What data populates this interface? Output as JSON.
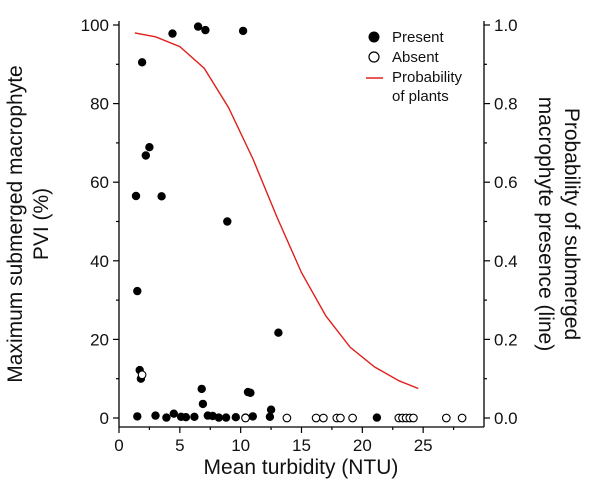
{
  "chart_data": {
    "type": "scatter",
    "xlabel": "Mean turbidity (NTU)",
    "ylabel_left": [
      "Maximum submerged macrophyte",
      "PVI (%)"
    ],
    "ylabel_right": [
      "Probability of submerged",
      "macrophyte presence (line)"
    ],
    "xlim": [
      0,
      30
    ],
    "ylim_left": [
      0,
      100
    ],
    "ylim_right": [
      0,
      1
    ],
    "x_ticks": [
      0,
      5,
      10,
      15,
      20,
      25
    ],
    "x_tick_labels": [
      "0",
      "5",
      "10",
      "15",
      "20",
      "25"
    ],
    "y_left_ticks": [
      0,
      20,
      40,
      60,
      80,
      100
    ],
    "y_left_tick_labels": [
      "0",
      "20",
      "40",
      "60",
      "80",
      "100"
    ],
    "y_right_ticks": [
      0,
      0.2,
      0.4,
      0.6,
      0.8,
      1.0
    ],
    "y_right_tick_labels": [
      "0.0",
      "0.2",
      "0.4",
      "0.6",
      "0.8",
      "1.0"
    ],
    "legend": {
      "position": "top-right",
      "entries": [
        {
          "label": "Present",
          "marker": "filled-circle"
        },
        {
          "label": "Absent",
          "marker": "open-circle"
        },
        {
          "label": [
            "Probability",
            "of plants"
          ],
          "marker": "red-line"
        }
      ]
    },
    "colors": {
      "curve": "#e0201b",
      "present": "#000000",
      "absent": "#ffffff"
    },
    "series": [
      {
        "name": "Present",
        "points": [
          [
            1.4,
            56.5
          ],
          [
            1.5,
            32.3
          ],
          [
            1.7,
            12.2
          ],
          [
            1.8,
            10.0
          ],
          [
            1.9,
            90.5
          ],
          [
            2.2,
            66.8
          ],
          [
            2.5,
            68.9
          ],
          [
            3.5,
            56.4
          ],
          [
            4.4,
            97.8
          ],
          [
            6.5,
            99.6
          ],
          [
            7.1,
            98.7
          ],
          [
            8.9,
            50.0
          ],
          [
            10.2,
            98.5
          ],
          [
            13.1,
            21.7
          ],
          [
            6.8,
            7.4
          ],
          [
            6.9,
            3.6
          ],
          [
            10.6,
            6.6
          ],
          [
            10.8,
            6.4
          ],
          [
            12.5,
            2.1
          ],
          [
            1.5,
            0.4
          ],
          [
            3.0,
            0.6
          ],
          [
            3.9,
            0.1
          ],
          [
            4.5,
            1.1
          ],
          [
            5.1,
            0.3
          ],
          [
            5.5,
            0.2
          ],
          [
            6.2,
            0.3
          ],
          [
            7.3,
            0.6
          ],
          [
            7.7,
            0.5
          ],
          [
            8.2,
            0.1
          ],
          [
            8.8,
            0.1
          ],
          [
            9.6,
            0.2
          ],
          [
            10.4,
            0.1
          ],
          [
            11.0,
            0.4
          ],
          [
            12.4,
            0.3
          ],
          [
            21.2,
            0.1
          ]
        ]
      },
      {
        "name": "Absent",
        "points": [
          [
            1.9,
            11.0
          ],
          [
            10.4,
            0.0
          ],
          [
            13.8,
            0.0
          ],
          [
            16.2,
            0.0
          ],
          [
            16.8,
            0.0
          ],
          [
            17.9,
            0.0
          ],
          [
            18.2,
            0.0
          ],
          [
            19.2,
            0.0
          ],
          [
            23.0,
            0.0
          ],
          [
            23.3,
            0.0
          ],
          [
            23.6,
            0.0
          ],
          [
            23.9,
            0.0
          ],
          [
            24.2,
            0.0
          ],
          [
            26.9,
            0.0
          ],
          [
            28.2,
            0.0
          ]
        ]
      },
      {
        "name": "Probability of plants",
        "type": "line",
        "axis": "right",
        "points": [
          [
            1.3,
            0.98
          ],
          [
            3.0,
            0.97
          ],
          [
            5.0,
            0.945
          ],
          [
            7.0,
            0.89
          ],
          [
            9.0,
            0.79
          ],
          [
            11.0,
            0.66
          ],
          [
            13.0,
            0.51
          ],
          [
            15.0,
            0.37
          ],
          [
            17.0,
            0.26
          ],
          [
            19.0,
            0.18
          ],
          [
            21.0,
            0.13
          ],
          [
            23.0,
            0.095
          ],
          [
            24.6,
            0.075
          ]
        ]
      }
    ]
  }
}
